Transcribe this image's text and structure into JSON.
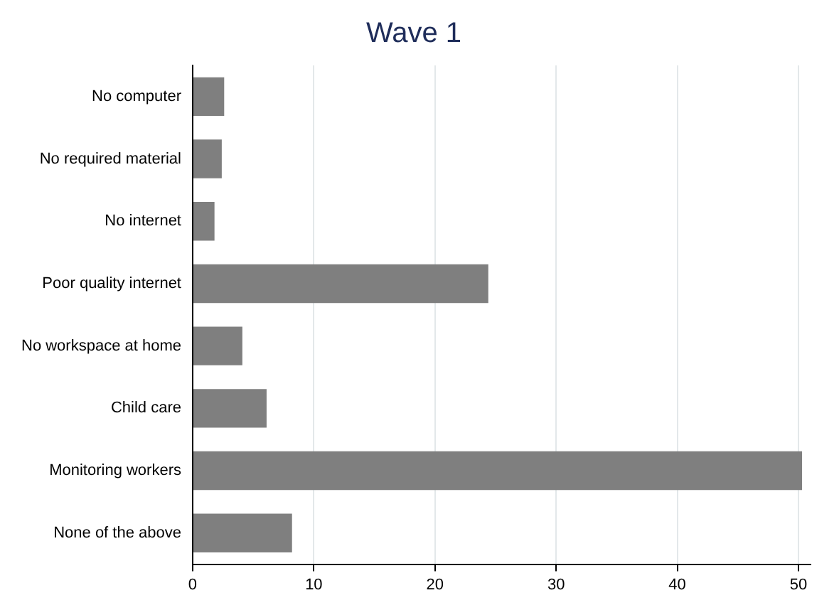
{
  "chart_data": {
    "type": "bar",
    "orientation": "horizontal",
    "title": "Wave 1",
    "categories": [
      "No computer",
      "No required material",
      "No internet",
      "Poor quality internet",
      "No workspace at home",
      "Child care",
      "Monitoring workers",
      "None of the above"
    ],
    "values": [
      2.6,
      2.4,
      1.8,
      24.4,
      4.1,
      6.1,
      50.3,
      8.2
    ],
    "color": "#7f7f7f",
    "xlim": [
      0,
      51
    ],
    "xticks": [
      0,
      10,
      20,
      30,
      40,
      50
    ],
    "grid": "x",
    "legend": false
  }
}
